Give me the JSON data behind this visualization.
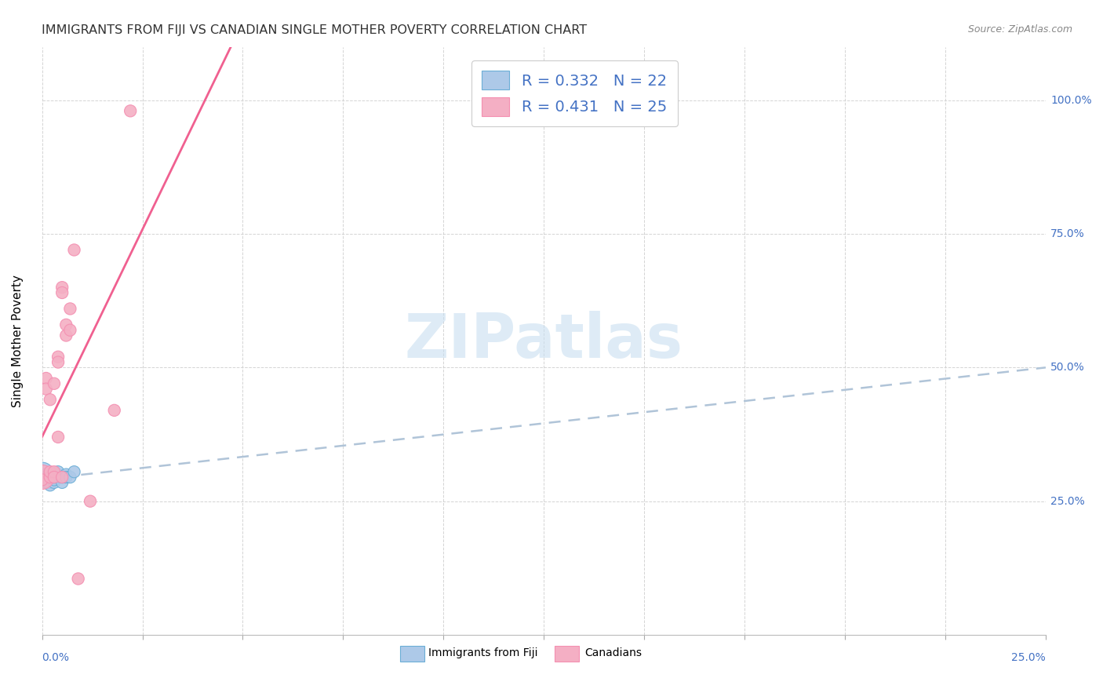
{
  "title": "IMMIGRANTS FROM FIJI VS CANADIAN SINGLE MOTHER POVERTY CORRELATION CHART",
  "source": "Source: ZipAtlas.com",
  "ylabel": "Single Mother Poverty",
  "fiji_R": 0.332,
  "fiji_N": 22,
  "canadian_R": 0.431,
  "canadian_N": 25,
  "fiji_color": "#adc9e8",
  "canadian_color": "#f4afc4",
  "fiji_edge_color": "#6baed6",
  "canadian_edge_color": "#f48fb1",
  "fiji_line_color": "#b0c8e0",
  "canadian_line_color": "#f06090",
  "watermark_color": "#c8dff0",
  "xlim": [
    0.0,
    0.25
  ],
  "ylim": [
    0.0,
    1.1
  ],
  "ytick_vals": [
    0.25,
    0.5,
    0.75,
    1.0
  ],
  "ytick_labels": [
    "25.0%",
    "50.0%",
    "75.0%",
    "100.0%"
  ],
  "fiji_points": [
    [
      0.0,
      0.3
    ],
    [
      0.0,
      0.295
    ],
    [
      0.001,
      0.285
    ],
    [
      0.001,
      0.3
    ],
    [
      0.001,
      0.295
    ],
    [
      0.002,
      0.285
    ],
    [
      0.002,
      0.29
    ],
    [
      0.002,
      0.3
    ],
    [
      0.002,
      0.28
    ],
    [
      0.003,
      0.295
    ],
    [
      0.003,
      0.285
    ],
    [
      0.003,
      0.29
    ],
    [
      0.003,
      0.295
    ],
    [
      0.004,
      0.295
    ],
    [
      0.004,
      0.3
    ],
    [
      0.004,
      0.305
    ],
    [
      0.005,
      0.285
    ],
    [
      0.005,
      0.295
    ],
    [
      0.006,
      0.3
    ],
    [
      0.006,
      0.295
    ],
    [
      0.007,
      0.295
    ],
    [
      0.008,
      0.305
    ]
  ],
  "canadian_points": [
    [
      0.0,
      0.295
    ],
    [
      0.0,
      0.29
    ],
    [
      0.001,
      0.48
    ],
    [
      0.001,
      0.46
    ],
    [
      0.002,
      0.295
    ],
    [
      0.002,
      0.305
    ],
    [
      0.002,
      0.44
    ],
    [
      0.003,
      0.305
    ],
    [
      0.003,
      0.295
    ],
    [
      0.003,
      0.47
    ],
    [
      0.004,
      0.52
    ],
    [
      0.004,
      0.51
    ],
    [
      0.004,
      0.37
    ],
    [
      0.005,
      0.295
    ],
    [
      0.005,
      0.65
    ],
    [
      0.005,
      0.64
    ],
    [
      0.006,
      0.58
    ],
    [
      0.006,
      0.56
    ],
    [
      0.007,
      0.61
    ],
    [
      0.007,
      0.57
    ],
    [
      0.008,
      0.72
    ],
    [
      0.009,
      0.105
    ],
    [
      0.012,
      0.25
    ],
    [
      0.018,
      0.42
    ],
    [
      0.022,
      0.98
    ]
  ],
  "fiji_sizes": [
    500,
    120,
    120,
    120,
    120,
    120,
    120,
    120,
    120,
    120,
    120,
    120,
    120,
    120,
    120,
    120,
    120,
    120,
    120,
    120,
    120,
    120
  ],
  "canadian_sizes": [
    500,
    120,
    120,
    120,
    120,
    120,
    120,
    120,
    120,
    120,
    120,
    120,
    120,
    120,
    120,
    120,
    120,
    120,
    120,
    120,
    120,
    120,
    120,
    120,
    120
  ]
}
